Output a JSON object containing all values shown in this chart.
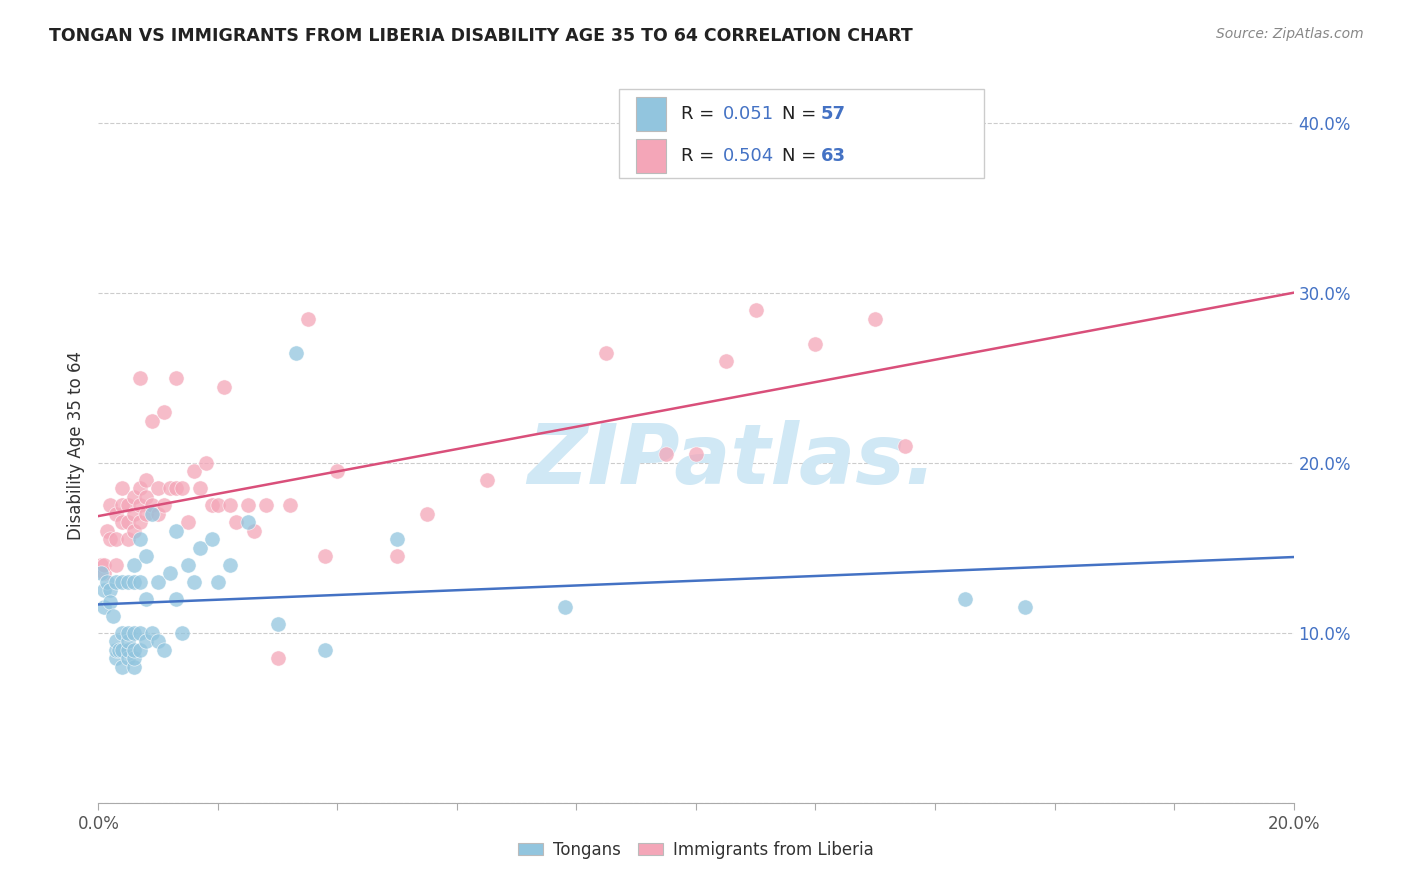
{
  "title": "TONGAN VS IMMIGRANTS FROM LIBERIA DISABILITY AGE 35 TO 64 CORRELATION CHART",
  "source": "Source: ZipAtlas.com",
  "ylabel": "Disability Age 35 to 64",
  "xlim": [
    0.0,
    0.2
  ],
  "ylim": [
    0.0,
    0.42
  ],
  "tongan_R": 0.051,
  "tongan_N": 57,
  "liberia_R": 0.504,
  "liberia_N": 63,
  "blue_color": "#92c5de",
  "pink_color": "#f4a6b8",
  "blue_line_color": "#4472c4",
  "pink_line_color": "#d94f7a",
  "watermark_color": "#d0e8f5",
  "legend_label_1": "Tongans",
  "legend_label_2": "Immigrants from Liberia",
  "stat_color": "#4472c4",
  "tongan_x": [
    0.0005,
    0.001,
    0.001,
    0.0015,
    0.002,
    0.002,
    0.0025,
    0.003,
    0.003,
    0.003,
    0.003,
    0.0035,
    0.004,
    0.004,
    0.004,
    0.004,
    0.005,
    0.005,
    0.005,
    0.005,
    0.005,
    0.006,
    0.006,
    0.006,
    0.006,
    0.006,
    0.006,
    0.007,
    0.007,
    0.007,
    0.007,
    0.008,
    0.008,
    0.008,
    0.009,
    0.009,
    0.01,
    0.01,
    0.011,
    0.012,
    0.013,
    0.013,
    0.014,
    0.015,
    0.016,
    0.017,
    0.019,
    0.02,
    0.022,
    0.025,
    0.03,
    0.033,
    0.038,
    0.05,
    0.078,
    0.145,
    0.155
  ],
  "tongan_y": [
    0.135,
    0.125,
    0.115,
    0.13,
    0.125,
    0.118,
    0.11,
    0.085,
    0.09,
    0.095,
    0.13,
    0.09,
    0.08,
    0.09,
    0.1,
    0.13,
    0.085,
    0.09,
    0.095,
    0.1,
    0.13,
    0.08,
    0.085,
    0.09,
    0.1,
    0.13,
    0.14,
    0.09,
    0.1,
    0.13,
    0.155,
    0.095,
    0.12,
    0.145,
    0.1,
    0.17,
    0.095,
    0.13,
    0.09,
    0.135,
    0.12,
    0.16,
    0.1,
    0.14,
    0.13,
    0.15,
    0.155,
    0.13,
    0.14,
    0.165,
    0.105,
    0.265,
    0.09,
    0.155,
    0.115,
    0.12,
    0.115
  ],
  "liberia_x": [
    0.0005,
    0.001,
    0.001,
    0.0015,
    0.002,
    0.002,
    0.003,
    0.003,
    0.003,
    0.004,
    0.004,
    0.004,
    0.005,
    0.005,
    0.005,
    0.006,
    0.006,
    0.006,
    0.007,
    0.007,
    0.007,
    0.007,
    0.008,
    0.008,
    0.008,
    0.009,
    0.009,
    0.01,
    0.01,
    0.011,
    0.011,
    0.012,
    0.013,
    0.013,
    0.014,
    0.015,
    0.016,
    0.017,
    0.018,
    0.019,
    0.02,
    0.021,
    0.022,
    0.023,
    0.025,
    0.026,
    0.028,
    0.03,
    0.032,
    0.035,
    0.038,
    0.04,
    0.05,
    0.055,
    0.065,
    0.085,
    0.095,
    0.1,
    0.105,
    0.11,
    0.12,
    0.13,
    0.135
  ],
  "liberia_y": [
    0.14,
    0.135,
    0.14,
    0.16,
    0.155,
    0.175,
    0.14,
    0.155,
    0.17,
    0.165,
    0.175,
    0.185,
    0.155,
    0.165,
    0.175,
    0.16,
    0.17,
    0.18,
    0.165,
    0.175,
    0.185,
    0.25,
    0.17,
    0.18,
    0.19,
    0.175,
    0.225,
    0.17,
    0.185,
    0.175,
    0.23,
    0.185,
    0.185,
    0.25,
    0.185,
    0.165,
    0.195,
    0.185,
    0.2,
    0.175,
    0.175,
    0.245,
    0.175,
    0.165,
    0.175,
    0.16,
    0.175,
    0.085,
    0.175,
    0.285,
    0.145,
    0.195,
    0.145,
    0.17,
    0.19,
    0.265,
    0.205,
    0.205,
    0.26,
    0.29,
    0.27,
    0.285,
    0.21
  ]
}
